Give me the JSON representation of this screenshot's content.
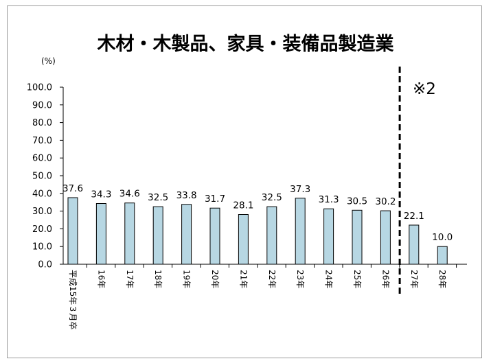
{
  "chart_data": {
    "type": "bar",
    "title": "木材・木製品、家具・装備品製造業",
    "unit_label": "(%)",
    "note_label": "※2",
    "categories": [
      "平成15年３月卒",
      "16年",
      "17年",
      "18年",
      "19年",
      "20年",
      "21年",
      "22年",
      "23年",
      "24年",
      "25年",
      "26年",
      "27年",
      "28年"
    ],
    "values": [
      37.6,
      34.3,
      34.6,
      32.5,
      33.8,
      31.7,
      28.1,
      32.5,
      37.3,
      31.3,
      30.5,
      30.2,
      22.1,
      10.0
    ],
    "value_labels": [
      "37.6",
      "34.3",
      "34.6",
      "32.5",
      "33.8",
      "31.7",
      "28.1",
      "32.5",
      "37.3",
      "31.3",
      "30.5",
      "30.2",
      "22.1",
      "10.0"
    ],
    "ylim": [
      0,
      100
    ],
    "yticks": [
      "0.0",
      "10.0",
      "20.0",
      "30.0",
      "40.0",
      "50.0",
      "60.0",
      "70.0",
      "80.0",
      "90.0",
      "100.0"
    ],
    "divider_after_index": 11,
    "bar_color": "#b7d7e3",
    "bar_stroke": "#000000",
    "legend": "none",
    "grid": false
  }
}
